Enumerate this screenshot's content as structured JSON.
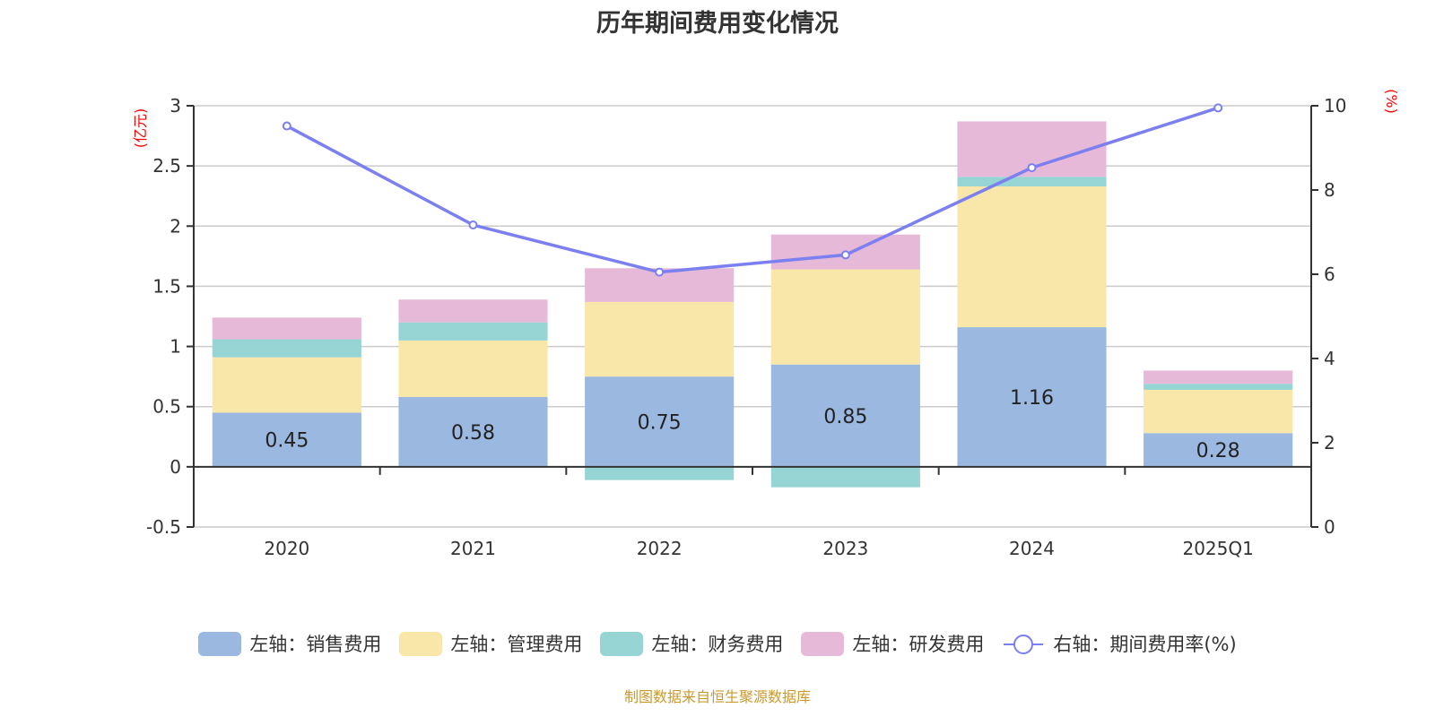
{
  "chart_data": {
    "type": "bar",
    "title": "历年期间费用变化情况",
    "categories": [
      "2020",
      "2021",
      "2022",
      "2023",
      "2024",
      "2025Q1"
    ],
    "stacked": true,
    "left_axis": {
      "unit_label": "(亿元)",
      "ylim": [
        -0.5,
        3
      ],
      "ticks": [
        -0.5,
        0,
        0.5,
        1,
        1.5,
        2,
        2.5,
        3
      ],
      "tick_labels": [
        "-0.5",
        "0",
        "0.5",
        "1",
        "1.5",
        "2",
        "2.5",
        "3"
      ]
    },
    "right_axis": {
      "unit_label": "(%)",
      "ylim": [
        0,
        10
      ],
      "ticks": [
        0,
        2,
        4,
        6,
        8,
        10
      ],
      "tick_labels": [
        "0",
        "2",
        "4",
        "6",
        "8",
        "10"
      ]
    },
    "grid": true,
    "legend_position": "bottom",
    "series": [
      {
        "name": "左轴：销售费用",
        "axis": "left",
        "type": "bar",
        "color": "#9bb8e1",
        "values": [
          0.45,
          0.58,
          0.75,
          0.85,
          1.16,
          0.28
        ],
        "data_labels": [
          "0.45",
          "0.58",
          "0.75",
          "0.85",
          "1.16",
          "0.28"
        ]
      },
      {
        "name": "左轴：管理费用",
        "axis": "left",
        "type": "bar",
        "color": "#f8e7a9",
        "values": [
          0.46,
          0.47,
          0.62,
          0.79,
          1.17,
          0.36
        ]
      },
      {
        "name": "左轴：财务费用",
        "axis": "left",
        "type": "bar",
        "color": "#97d4d4",
        "values": [
          0.15,
          0.15,
          -0.11,
          -0.17,
          0.08,
          0.05
        ]
      },
      {
        "name": "左轴：研发费用",
        "axis": "left",
        "type": "bar",
        "color": "#e7b9d8",
        "values": [
          0.18,
          0.19,
          0.28,
          0.29,
          0.46,
          0.11
        ]
      },
      {
        "name": "右轴：期间费用率(%)",
        "axis": "right",
        "type": "line",
        "color": "#7b7ff0",
        "values": [
          9.52,
          7.17,
          6.05,
          6.46,
          8.53,
          9.95
        ]
      }
    ]
  },
  "footer": {
    "source_note": "制图数据来自恒生聚源数据库"
  }
}
